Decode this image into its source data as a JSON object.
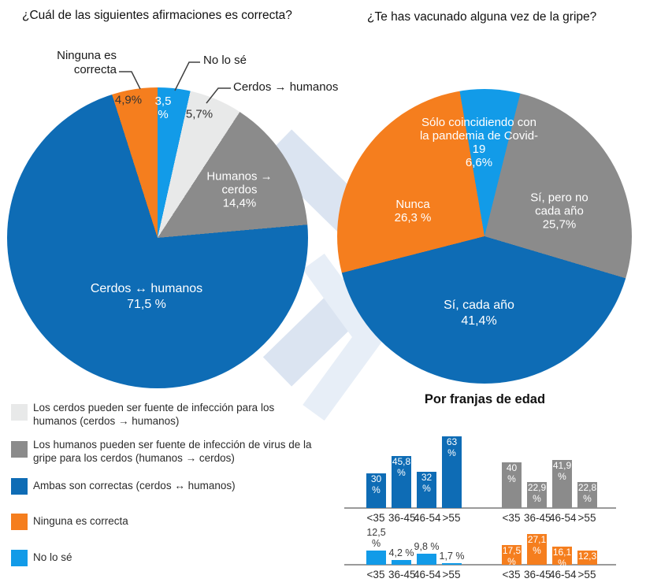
{
  "colors": {
    "dark_blue": "#0E6CB5",
    "gray": "#8B8B8B",
    "light_gray": "#E8E9E9",
    "orange": "#F57E1E",
    "light_blue": "#129BE8",
    "axis_line": "#9A9A9A",
    "watermark": "#DBE4F1",
    "watermark_light": "#E7EEF7"
  },
  "chart_data": [
    {
      "type": "pie",
      "title": "¿Cuál de las siguientes afirmaciones es correcta?",
      "start_angle_deg": 0,
      "slices": [
        {
          "label": "No lo sé",
          "value": 3.5,
          "display": "3,5 %",
          "color": "#129BE8"
        },
        {
          "label": "Cerdos → humanos",
          "value": 5.7,
          "display": "5,7%",
          "color": "#E8E9E9"
        },
        {
          "label": "Humanos → cerdos",
          "value": 14.4,
          "display": "14,4%",
          "color": "#8B8B8B"
        },
        {
          "label": "Cerdos ↔ humanos",
          "value": 71.5,
          "display": "71,5 %",
          "color": "#0E6CB5"
        },
        {
          "label": "Ninguna es correcta",
          "value": 4.9,
          "display": "4,9%",
          "color": "#F57E1E"
        }
      ]
    },
    {
      "type": "pie",
      "title": "¿Te has vacunado alguna vez de la gripe?",
      "start_angle_deg": -9.7,
      "slices": [
        {
          "label": "Sólo coincidiendo con la pandemia de Covid-19",
          "value": 6.6,
          "display": "6,6%",
          "color": "#129BE8"
        },
        {
          "label": "Sí, pero no cada año",
          "value": 25.7,
          "display": "25,7%",
          "color": "#8B8B8B"
        },
        {
          "label": "Sí, cada año",
          "value": 41.4,
          "display": "41,4%",
          "color": "#0E6CB5"
        },
        {
          "label": "Nunca",
          "value": 26.3,
          "display": "26,3 %",
          "color": "#F57E1E"
        }
      ]
    },
    {
      "type": "bar",
      "title": "Por franjas de edad",
      "categories": [
        "<35",
        "36-45",
        "46-54",
        ">55"
      ],
      "series": [
        {
          "color": "#0E6CB5",
          "values": [
            30,
            45.8,
            32,
            63
          ],
          "labels": [
            "30 %",
            "45,8 %",
            "32 %",
            "63 %"
          ],
          "label_position": "inside"
        },
        {
          "color": "#8B8B8B",
          "values": [
            40,
            22.9,
            41.9,
            22.8
          ],
          "labels": [
            "40 %",
            "22,9 %",
            "41,9 %",
            "22,8 %"
          ],
          "label_position": "inside"
        },
        {
          "color": "#129BE8",
          "values": [
            12.5,
            4.2,
            9.8,
            1.7
          ],
          "labels": [
            "12,5 %",
            "4,2 %",
            "9,8 %",
            "1,7 %"
          ],
          "label_position": "above"
        },
        {
          "color": "#F57E1E",
          "values": [
            17.5,
            27.1,
            16.1,
            12.3
          ],
          "labels": [
            "17,5 %",
            "27,1 %",
            "16,1 %",
            "12,3"
          ],
          "label_position": "inside"
        }
      ]
    }
  ],
  "legend": {
    "items": [
      {
        "color": "#E8E9E9",
        "text": "Los cerdos pueden ser fuente de infección para los humanos (cerdos → humanos)"
      },
      {
        "color": "#8B8B8B",
        "text": "Los humanos pueden ser fuente de infección de virus de la gripe para los cerdos (humanos → cerdos)"
      },
      {
        "color": "#0E6CB5",
        "text": "Ambas son correctas (cerdos ↔ humanos)"
      },
      {
        "color": "#F57E1E",
        "text": "Ninguna es correcta"
      },
      {
        "color": "#129BE8",
        "text": "No lo sé"
      }
    ]
  }
}
